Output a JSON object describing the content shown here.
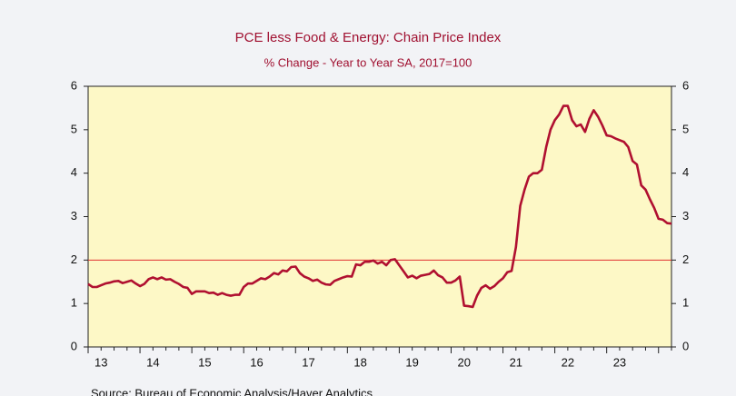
{
  "chart_data": {
    "type": "line",
    "title": "PCE less Food & Energy: Chain Price Index",
    "subtitle": "% Change - Year to Year   SA, 2017=100",
    "source": "Source:  Bureau of Economic Analysis/Haver Analytics",
    "categories": [
      null,
      null,
      null,
      "13",
      null,
      null,
      null,
      null,
      null,
      null,
      null,
      null,
      null,
      null,
      null,
      "14",
      null,
      null,
      null,
      null,
      null,
      null,
      null,
      null,
      null,
      null,
      null,
      "15",
      null,
      null,
      null,
      null,
      null,
      null,
      null,
      null,
      null,
      null,
      null,
      "16",
      null,
      null,
      null,
      null,
      null,
      null,
      null,
      null,
      null,
      null,
      null,
      "17",
      null,
      null,
      null,
      null,
      null,
      null,
      null,
      null,
      null,
      null,
      null,
      "18",
      null,
      null,
      null,
      null,
      null,
      null,
      null,
      null,
      null,
      null,
      null,
      "19",
      null,
      null,
      null,
      null,
      null,
      null,
      null,
      null,
      null,
      null,
      null,
      "20",
      null,
      null,
      null,
      null,
      null,
      null,
      null,
      null,
      null,
      null,
      null,
      "21",
      null,
      null,
      null,
      null,
      null,
      null,
      null,
      null,
      null,
      null,
      null,
      "22",
      null,
      null,
      null,
      null,
      null,
      null,
      null,
      null,
      null,
      null,
      null,
      "23",
      null,
      null,
      null,
      null,
      null,
      null,
      null,
      null,
      null,
      null,
      null,
      null
    ],
    "series": [
      {
        "color": "#b01030",
        "values": [
          1.45,
          1.38,
          1.38,
          1.42,
          1.46,
          1.48,
          1.51,
          1.52,
          1.47,
          1.5,
          1.53,
          1.46,
          1.4,
          1.45,
          1.56,
          1.6,
          1.56,
          1.6,
          1.55,
          1.56,
          1.5,
          1.45,
          1.38,
          1.36,
          1.22,
          1.28,
          1.28,
          1.28,
          1.24,
          1.25,
          1.2,
          1.24,
          1.2,
          1.18,
          1.2,
          1.2,
          1.38,
          1.46,
          1.46,
          1.52,
          1.58,
          1.56,
          1.62,
          1.7,
          1.67,
          1.76,
          1.74,
          1.84,
          1.85,
          1.7,
          1.62,
          1.58,
          1.52,
          1.55,
          1.48,
          1.44,
          1.43,
          1.52,
          1.56,
          1.6,
          1.63,
          1.62,
          1.9,
          1.88,
          1.96,
          1.96,
          1.99,
          1.92,
          1.96,
          1.88,
          2.0,
          2.02,
          1.88,
          1.74,
          1.6,
          1.64,
          1.58,
          1.64,
          1.66,
          1.68,
          1.76,
          1.65,
          1.6,
          1.48,
          1.48,
          1.53,
          1.62,
          0.95,
          0.94,
          0.92,
          1.18,
          1.36,
          1.42,
          1.34,
          1.4,
          1.5,
          1.58,
          1.72,
          1.75,
          2.3,
          3.25,
          3.62,
          3.92,
          4.0,
          4.0,
          4.08,
          4.6,
          5.0,
          5.22,
          5.35,
          5.55,
          5.55,
          5.22,
          5.08,
          5.12,
          4.95,
          5.25,
          5.45,
          5.3,
          5.1,
          4.87,
          4.85,
          4.8,
          4.76,
          4.72,
          4.6,
          4.28,
          4.2,
          3.72,
          3.62,
          3.4,
          3.2,
          2.95,
          2.93,
          2.85,
          2.84
        ]
      }
    ],
    "ylim": [
      0,
      6
    ],
    "yticks": [
      0,
      1,
      2,
      3,
      4,
      5,
      6
    ],
    "reference_line": {
      "value": 2,
      "color": "#e03030"
    },
    "plot_background": "#fdf8c6"
  }
}
